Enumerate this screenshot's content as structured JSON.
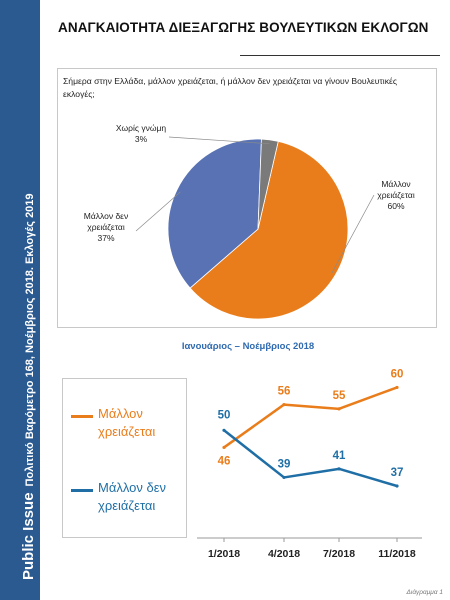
{
  "sidebar": {
    "brand": "Public Issue",
    "subtitle": "Πολιτικό Βαρόμετρο 168, Νοέμβριος 2018. Εκλογές 2019"
  },
  "page_title": "ΑΝΑΓΚΑΙΟΤΗΤΑ ΔΙΕΞΑΓΩΓΗΣ ΒΟΥΛΕΥΤΙΚΩΝ ΕΚΛΟΓΩΝ",
  "period_label": "Ιανουάριος – Νοέμβριος 2018",
  "footer": "Διάγραμμα 1",
  "colors": {
    "orange": "#ea7d1b",
    "blue": "#1f6fa6",
    "pie_blue": "#5872b4",
    "pie_gray": "#7a7a7a",
    "sidebar": "#2a5a90"
  },
  "chart_data": [
    {
      "type": "pie",
      "title": "Σήμερα στην Ελλάδα, μάλλον χρειάζεται, ή μάλλον δεν χρειάζεται να γίνουν Βουλευτικές εκλογές;",
      "slices": [
        {
          "label": "Μάλλον χρειάζεται",
          "value": 60,
          "value_label": "60%",
          "color": "#ea7d1b"
        },
        {
          "label": "Μάλλον δεν χρειάζεται",
          "value": 37,
          "value_label": "37%",
          "color": "#5872b4"
        },
        {
          "label": "Χωρίς γνώμη",
          "value": 3,
          "value_label": "3%",
          "color": "#7a7a7a"
        }
      ]
    },
    {
      "type": "line",
      "categories": [
        "1/2018",
        "4/2018",
        "7/2018",
        "11/2018"
      ],
      "ylim": [
        30,
        65
      ],
      "grid": false,
      "legend": "left",
      "series": [
        {
          "name": "Μάλλον χρειάζεται",
          "values": [
            46,
            56,
            55,
            60
          ],
          "color": "#ea7d1b"
        },
        {
          "name": "Μάλλον δεν χρειάζεται",
          "values": [
            50,
            39,
            41,
            37
          ],
          "color": "#1f6fa6"
        }
      ]
    }
  ]
}
